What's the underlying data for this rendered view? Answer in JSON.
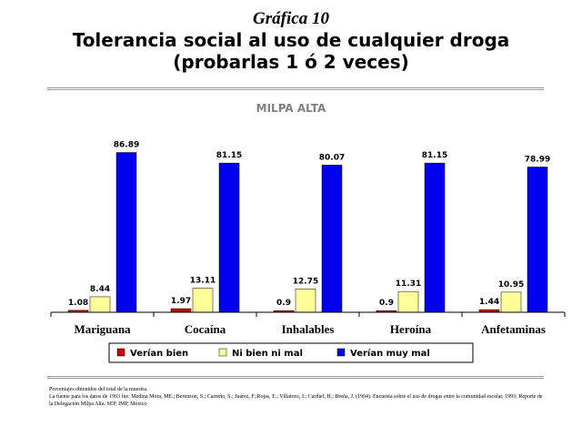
{
  "header": {
    "graph_number": "Gráfica 10",
    "title_line1": "Tolerancia social al uso de cualquier droga",
    "title_line2": "(probarlas 1 ó 2 veces)"
  },
  "footnotes": {
    "line1": "Porcentajes obtenidos del total de la muestra.",
    "line2": "La fuente para los datos de 1993 fue: Medina Mora, ME.; Berenzon, S.; Carreño, S.; Juárez, F.;Rojas, E.; Villatoro, J.; Cardiel, H.; Breña, J. (1994). Encuesta sobre el uso de drogas entre la comunidad escolar, 1993; Reporte de la Delegación Milpa Alta. SEP, IMP, México"
  },
  "chart_data": {
    "type": "bar",
    "title": "MILPA ALTA",
    "categories": [
      "Mariguana",
      "Cocaína",
      "Inhalables",
      "Heroína",
      "Anfetaminas"
    ],
    "series": [
      {
        "name": "Verían bien",
        "color": "#cc0000",
        "values": [
          1.08,
          1.97,
          0.9,
          0.9,
          1.44
        ],
        "labels": [
          "1.08",
          "1.97",
          "0.9",
          "0.9",
          "1.44"
        ]
      },
      {
        "name": "Ni bien ni mal",
        "color": "#ffff99",
        "values": [
          8.44,
          13.11,
          12.75,
          11.31,
          10.95
        ],
        "labels": [
          "8.44",
          "13.11",
          "12.75",
          "11.31",
          "10.95"
        ]
      },
      {
        "name": "Verían muy mal",
        "color": "#0000ee",
        "values": [
          86.89,
          81.15,
          80.07,
          81.15,
          78.99
        ],
        "labels": [
          "86.89",
          "81.15",
          "80.07",
          "81.15",
          "78.99"
        ]
      }
    ],
    "ylim": [
      0,
      100
    ],
    "grid": false,
    "legend": "bottom"
  }
}
